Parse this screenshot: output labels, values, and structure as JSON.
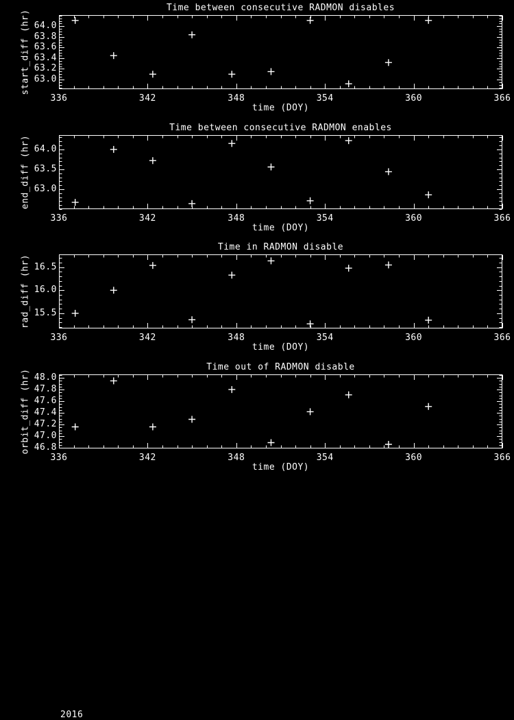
{
  "year_label": "2016",
  "colors": {
    "background": "#000000",
    "foreground": "#ffffff"
  },
  "chart_data": [
    {
      "type": "scatter",
      "title": "Time between consecutive RADMON disables",
      "xlabel": "time (DOY)",
      "ylabel": "start_diff (hr)",
      "marker": "plus",
      "legend": "none",
      "grid": false,
      "xlim": [
        336,
        366
      ],
      "ylim": [
        62.82,
        64.21
      ],
      "xticks": [
        336,
        342,
        348,
        354,
        360,
        366
      ],
      "xtick_labels": [
        "336",
        "342",
        "348",
        "354",
        "360",
        "366"
      ],
      "x_minor_step": 1,
      "yticks": [
        63.0,
        63.2,
        63.4,
        63.6,
        63.8,
        64.0
      ],
      "ytick_labels": [
        "63.0",
        "63.2",
        "63.4",
        "63.6",
        "63.8",
        "64.0"
      ],
      "y_minor_step": 0.05,
      "x": [
        337.1,
        339.7,
        342.35,
        345.0,
        347.7,
        350.35,
        353.0,
        355.6,
        358.3,
        361.0
      ],
      "y": [
        64.11,
        63.45,
        63.1,
        63.84,
        63.1,
        63.15,
        64.11,
        62.92,
        63.32,
        64.11
      ]
    },
    {
      "type": "scatter",
      "title": "Time between consecutive RADMON enables",
      "xlabel": "time (DOY)",
      "ylabel": "end_diff (hr)",
      "marker": "plus",
      "legend": "none",
      "grid": false,
      "xlim": [
        336,
        366
      ],
      "ylim": [
        62.5,
        64.36
      ],
      "xticks": [
        336,
        342,
        348,
        354,
        360,
        366
      ],
      "xtick_labels": [
        "336",
        "342",
        "348",
        "354",
        "360",
        "366"
      ],
      "x_minor_step": 1,
      "yticks": [
        63.0,
        63.5,
        64.0
      ],
      "ytick_labels": [
        "63.0",
        "63.5",
        "64.0"
      ],
      "y_minor_step": 0.1,
      "x": [
        337.1,
        339.7,
        342.35,
        345.0,
        347.7,
        350.35,
        353.0,
        355.6,
        358.3,
        361.0
      ],
      "y": [
        62.67,
        64.0,
        63.72,
        62.64,
        64.15,
        63.56,
        62.71,
        64.22,
        63.44,
        62.86
      ]
    },
    {
      "type": "scatter",
      "title": "Time in RADMON disable",
      "xlabel": "time (DOY)",
      "ylabel": "rad_diff (hr)",
      "marker": "plus",
      "legend": "none",
      "grid": false,
      "xlim": [
        336,
        366
      ],
      "ylim": [
        15.17,
        16.78
      ],
      "xticks": [
        336,
        342,
        348,
        354,
        360,
        366
      ],
      "xtick_labels": [
        "336",
        "342",
        "348",
        "354",
        "360",
        "366"
      ],
      "x_minor_step": 1,
      "yticks": [
        15.5,
        16.0,
        16.5
      ],
      "ytick_labels": [
        "15.5",
        "16.0",
        "16.5"
      ],
      "y_minor_step": 0.1,
      "x": [
        337.1,
        339.7,
        342.35,
        345.0,
        347.7,
        350.35,
        353.0,
        355.6,
        358.3,
        361.0
      ],
      "y": [
        15.5,
        16.0,
        16.54,
        15.36,
        16.33,
        16.64,
        15.27,
        16.48,
        16.55,
        15.35
      ]
    },
    {
      "type": "scatter",
      "title": "Time out of RADMON disable",
      "xlabel": "time (DOY)",
      "ylabel": "orbit_diff (hr)",
      "marker": "plus",
      "legend": "none",
      "grid": false,
      "xlim": [
        336,
        366
      ],
      "ylim": [
        46.79,
        48.06
      ],
      "xticks": [
        336,
        342,
        348,
        354,
        360,
        366
      ],
      "xtick_labels": [
        "336",
        "342",
        "348",
        "354",
        "360",
        "366"
      ],
      "x_minor_step": 1,
      "yticks": [
        46.8,
        47.0,
        47.2,
        47.4,
        47.6,
        47.8,
        48.0
      ],
      "ytick_labels": [
        "46.8",
        "47.0",
        "47.2",
        "47.4",
        "47.6",
        "47.8",
        "48.0"
      ],
      "y_minor_step": 0.05,
      "x": [
        337.1,
        339.7,
        342.35,
        345.0,
        347.7,
        350.35,
        353.0,
        355.6,
        358.3,
        361.0
      ],
      "y": [
        47.16,
        47.95,
        47.16,
        47.29,
        47.8,
        46.89,
        47.42,
        47.71,
        46.86,
        47.51
      ]
    }
  ]
}
